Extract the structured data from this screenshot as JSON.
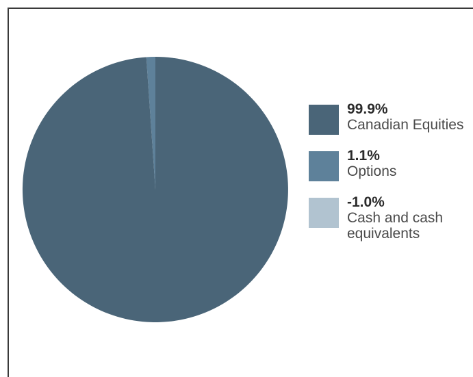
{
  "chart_data": {
    "type": "pie",
    "slices": [
      {
        "value_label": "99.9%",
        "label_lines": [
          "Canadian Equities"
        ],
        "value": 99.9,
        "color": "#4a6578"
      },
      {
        "value_label": "1.1%",
        "label_lines": [
          "Options"
        ],
        "value": 1.1,
        "color": "#5e819a"
      },
      {
        "value_label": "-1.0%",
        "label_lines": [
          "Cash and cash",
          "equivalents"
        ],
        "value": -1.0,
        "color": "#b1c3d0"
      }
    ],
    "legend_position": "right"
  }
}
